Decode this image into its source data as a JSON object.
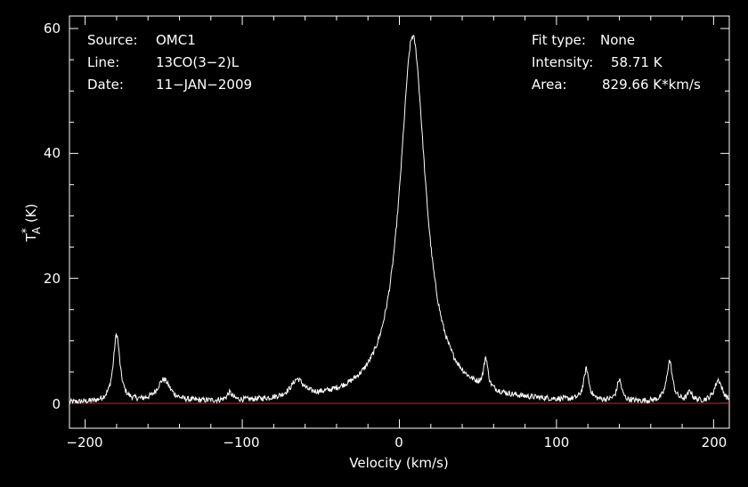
{
  "chart_data": {
    "type": "line",
    "xlabel": "Velocity (km/s)",
    "ylabel_main": "T",
    "ylabel_sup": "*",
    "ylabel_sub": "A",
    "ylabel_unit": " (K)",
    "xlim": [
      -210,
      210
    ],
    "ylim": [
      -4,
      62
    ],
    "xticks": [
      -200,
      -100,
      0,
      100,
      200
    ],
    "xtick_labels": [
      "−200",
      "−100",
      "0",
      "100",
      "200"
    ],
    "yticks": [
      0,
      20,
      40,
      60
    ],
    "ytick_labels": [
      "0",
      "20",
      "40",
      "60"
    ],
    "grid": false,
    "baseline_value": 0,
    "colors": {
      "background": "#000000",
      "spectrum": "#ffffff",
      "baseline": "#cc2222",
      "frame": "#ffffff"
    },
    "peaks": [
      {
        "x": -180,
        "height": 10.8,
        "width": 2.5
      },
      {
        "x": -150,
        "height": 3.5,
        "width": 5
      },
      {
        "x": -108,
        "height": 1.2,
        "width": 2
      },
      {
        "x": -65,
        "height": 2.8,
        "width": 5
      },
      {
        "x": 8.5,
        "height": 58.71,
        "width": 10
      },
      {
        "x": 55,
        "height": 4.8,
        "width": 1.6
      },
      {
        "x": 119,
        "height": 5.0,
        "width": 2
      },
      {
        "x": 140,
        "height": 3.4,
        "width": 1.8
      },
      {
        "x": 172,
        "height": 6.5,
        "width": 2.2
      },
      {
        "x": 185,
        "height": 1.5,
        "width": 1.8
      },
      {
        "x": 203,
        "height": 3.5,
        "width": 3
      }
    ],
    "annotations": {
      "source_label": "Source:",
      "source_value": "OMC1",
      "line_label": "Line:",
      "line_value": "13CO(3−2)L",
      "date_label": "Date:",
      "date_value": "11−JAN−2009",
      "fit_label": "Fit type:",
      "fit_value": "None",
      "intensity_label": "Intensity:",
      "intensity_value": "58.71 K",
      "area_label": "Area:",
      "area_value": "829.66 K*km/s"
    }
  }
}
